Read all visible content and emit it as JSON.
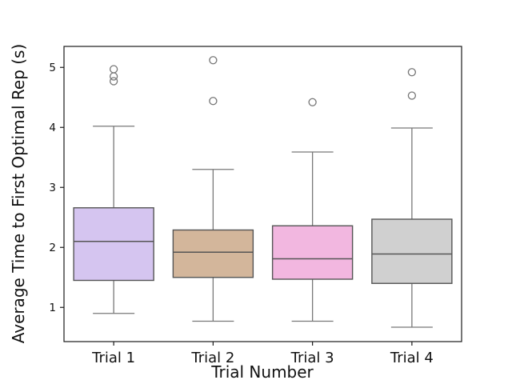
{
  "figure": {
    "background": "#ffffff"
  },
  "chart_data": {
    "type": "box",
    "title": "",
    "xlabel": "Trial Number",
    "ylabel": "Average Time to First Optimal Rep (s)",
    "categories": [
      "Trial 1",
      "Trial 2",
      "Trial 3",
      "Trial 4"
    ],
    "y_ticks": [
      1,
      2,
      3,
      4,
      5
    ],
    "ylim": [
      0.43,
      5.35
    ],
    "grid": false,
    "legend": null,
    "series": [
      {
        "name": "Trial 1",
        "whisker_low": 0.9,
        "q1": 1.45,
        "median": 2.1,
        "q3": 2.66,
        "whisker_high": 4.02,
        "outliers": [
          4.77,
          4.85,
          4.97
        ],
        "fill": "#d5c5f0"
      },
      {
        "name": "Trial 2",
        "whisker_low": 0.77,
        "q1": 1.5,
        "median": 1.92,
        "q3": 2.29,
        "whisker_high": 3.3,
        "outliers": [
          4.44,
          5.12
        ],
        "fill": "#d3b69b"
      },
      {
        "name": "Trial 3",
        "whisker_low": 0.77,
        "q1": 1.47,
        "median": 1.81,
        "q3": 2.36,
        "whisker_high": 3.59,
        "outliers": [
          4.42
        ],
        "fill": "#f2b7e0"
      },
      {
        "name": "Trial 4",
        "whisker_low": 0.67,
        "q1": 1.4,
        "median": 1.89,
        "q3": 2.47,
        "whisker_high": 3.99,
        "outliers": [
          4.53,
          4.92
        ],
        "fill": "#d0d0d0"
      }
    ],
    "colors": {
      "box_edge": "#555555",
      "whisker": "#787878",
      "outlier_edge": "#757575",
      "axis": "#1a1a1a",
      "text": "#111111"
    }
  }
}
